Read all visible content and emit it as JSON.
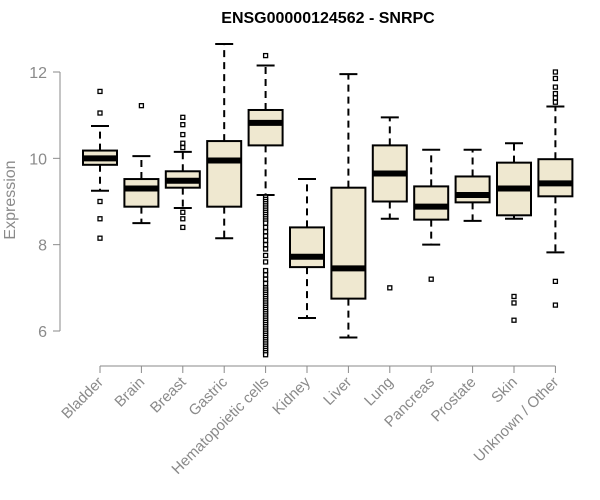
{
  "chart_data": {
    "type": "boxplot",
    "title": "ENSG00000124562 - SNRPC",
    "xlabel": "",
    "ylabel": "Expression",
    "ylim": [
      5.3,
      13.0
    ],
    "yticks": [
      6,
      8,
      10,
      12
    ],
    "colors": {
      "box_fill": "#efe8d0",
      "stroke": "#000000",
      "axis": "#8a8a8a"
    },
    "categories": [
      "Bladder",
      "Brain",
      "Breast",
      "Gastric",
      "Hematopoietic cells",
      "Kidney",
      "Liver",
      "Lung",
      "Pancreas",
      "Prostate",
      "Skin",
      "Unknown / Other"
    ],
    "boxes": [
      {
        "category": "Bladder",
        "whisker_low": 9.25,
        "q1": 9.85,
        "median": 10.0,
        "q3": 10.18,
        "whisker_high": 10.75,
        "outliers": [
          11.55,
          11.05,
          9.0,
          8.6,
          8.15
        ]
      },
      {
        "category": "Brain",
        "whisker_low": 8.5,
        "q1": 8.88,
        "median": 9.3,
        "q3": 9.52,
        "whisker_high": 10.05,
        "outliers": [
          11.22
        ]
      },
      {
        "category": "Breast",
        "whisker_low": 8.85,
        "q1": 9.32,
        "median": 9.48,
        "q3": 9.7,
        "whisker_high": 10.15,
        "outliers": [
          10.95,
          10.78,
          10.55,
          10.35,
          10.25,
          8.75,
          8.6,
          8.4
        ]
      },
      {
        "category": "Gastric",
        "whisker_low": 8.15,
        "q1": 8.88,
        "median": 9.95,
        "q3": 10.4,
        "whisker_high": 12.65,
        "outliers": []
      },
      {
        "category": "Hematopoietic cells",
        "whisker_low": 9.15,
        "q1": 10.3,
        "median": 10.82,
        "q3": 11.12,
        "whisker_high": 12.15,
        "outliers": [
          12.38,
          9.1,
          9.05,
          9.0,
          8.95,
          8.9,
          8.85,
          8.8,
          8.75,
          8.7,
          8.65,
          8.6,
          8.55,
          8.5,
          8.4,
          8.3,
          8.2,
          8.1,
          8.0,
          7.9,
          7.75,
          7.6,
          7.4,
          7.3,
          7.2,
          7.1,
          7.0,
          6.95,
          6.9,
          6.85,
          6.8,
          6.75,
          6.7,
          6.65,
          6.6,
          6.55,
          6.5,
          6.45,
          6.4,
          6.35,
          6.3,
          6.25,
          6.2,
          6.15,
          6.1,
          6.05,
          6.0,
          5.95,
          5.9,
          5.85,
          5.8,
          5.75,
          5.7,
          5.65,
          5.6,
          5.55,
          5.5,
          5.45
        ]
      },
      {
        "category": "Kidney",
        "whisker_low": 6.3,
        "q1": 7.48,
        "median": 7.72,
        "q3": 8.4,
        "whisker_high": 9.52,
        "outliers": []
      },
      {
        "category": "Liver",
        "whisker_low": 5.85,
        "q1": 6.75,
        "median": 7.45,
        "q3": 9.32,
        "whisker_high": 11.95,
        "outliers": []
      },
      {
        "category": "Lung",
        "whisker_low": 8.6,
        "q1": 9.0,
        "median": 9.65,
        "q3": 10.3,
        "whisker_high": 10.95,
        "outliers": [
          7.0
        ]
      },
      {
        "category": "Pancreas",
        "whisker_low": 8.0,
        "q1": 8.58,
        "median": 8.88,
        "q3": 9.35,
        "whisker_high": 10.2,
        "outliers": [
          7.2
        ]
      },
      {
        "category": "Prostate",
        "whisker_low": 8.55,
        "q1": 8.98,
        "median": 9.15,
        "q3": 9.58,
        "whisker_high": 10.2,
        "outliers": []
      },
      {
        "category": "Skin",
        "whisker_low": 8.6,
        "q1": 8.68,
        "median": 9.3,
        "q3": 9.9,
        "whisker_high": 10.35,
        "outliers": [
          6.8,
          6.65,
          6.25
        ]
      },
      {
        "category": "Unknown / Other",
        "whisker_low": 7.82,
        "q1": 9.12,
        "median": 9.42,
        "q3": 9.98,
        "whisker_high": 11.2,
        "outliers": [
          12.0,
          11.85,
          11.65,
          11.5,
          11.4,
          11.3,
          7.15,
          6.6
        ]
      }
    ]
  }
}
